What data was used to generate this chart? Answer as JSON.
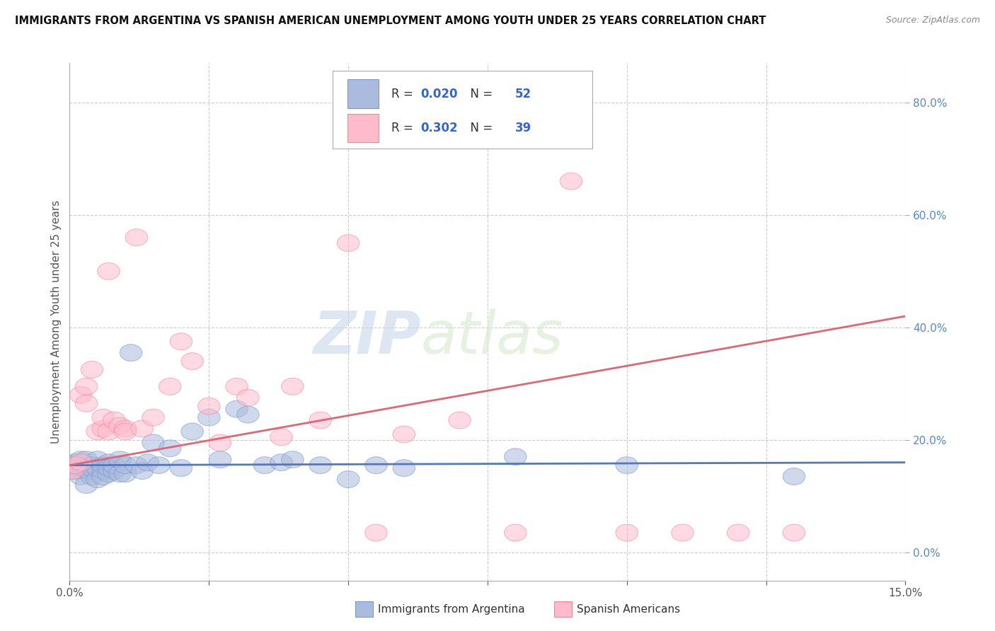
{
  "title": "IMMIGRANTS FROM ARGENTINA VS SPANISH AMERICAN UNEMPLOYMENT AMONG YOUTH UNDER 25 YEARS CORRELATION CHART",
  "source": "Source: ZipAtlas.com",
  "ylabel": "Unemployment Among Youth under 25 years",
  "xlim": [
    0.0,
    0.15
  ],
  "ylim": [
    -0.05,
    0.87
  ],
  "right_yticks": [
    0.0,
    0.2,
    0.4,
    0.6,
    0.8
  ],
  "right_yticklabels": [
    "0.0%",
    "20.0%",
    "40.0%",
    "60.0%",
    "80.0%"
  ],
  "xticks": [
    0.0,
    0.025,
    0.05,
    0.075,
    0.1,
    0.125,
    0.15
  ],
  "xticklabels": [
    "0.0%",
    "",
    "",
    "",
    "",
    "",
    "15.0%"
  ],
  "background_color": "#ffffff",
  "grid_color": "#cccccc",
  "watermark_zip": "ZIP",
  "watermark_atlas": "atlas",
  "legend_blue_label": "Immigrants from Argentina",
  "legend_pink_label": "Spanish Americans",
  "blue_R": "0.020",
  "blue_N": "52",
  "pink_R": "0.302",
  "pink_N": "39",
  "blue_fill": "#aabbdd",
  "blue_edge": "#7799cc",
  "pink_fill": "#ffbbcc",
  "pink_edge": "#ee8899",
  "blue_line_color": "#5577bb",
  "pink_line_color": "#dd6677",
  "blue_scatter_x": [
    0.0005,
    0.001,
    0.001,
    0.0015,
    0.002,
    0.002,
    0.0025,
    0.003,
    0.003,
    0.003,
    0.0035,
    0.004,
    0.004,
    0.004,
    0.005,
    0.005,
    0.005,
    0.006,
    0.006,
    0.006,
    0.007,
    0.007,
    0.007,
    0.008,
    0.008,
    0.009,
    0.009,
    0.01,
    0.01,
    0.011,
    0.012,
    0.013,
    0.014,
    0.015,
    0.016,
    0.018,
    0.02,
    0.022,
    0.025,
    0.027,
    0.03,
    0.032,
    0.035,
    0.038,
    0.04,
    0.045,
    0.05,
    0.055,
    0.06,
    0.08,
    0.1,
    0.13
  ],
  "blue_scatter_y": [
    0.155,
    0.145,
    0.16,
    0.15,
    0.135,
    0.165,
    0.15,
    0.12,
    0.15,
    0.165,
    0.145,
    0.155,
    0.135,
    0.15,
    0.13,
    0.15,
    0.165,
    0.145,
    0.155,
    0.135,
    0.14,
    0.16,
    0.15,
    0.145,
    0.155,
    0.14,
    0.165,
    0.14,
    0.155,
    0.355,
    0.155,
    0.145,
    0.16,
    0.195,
    0.155,
    0.185,
    0.15,
    0.215,
    0.24,
    0.165,
    0.255,
    0.245,
    0.155,
    0.16,
    0.165,
    0.155,
    0.13,
    0.155,
    0.15,
    0.17,
    0.155,
    0.135
  ],
  "pink_scatter_x": [
    0.0005,
    0.001,
    0.002,
    0.002,
    0.003,
    0.003,
    0.004,
    0.005,
    0.006,
    0.006,
    0.007,
    0.007,
    0.008,
    0.009,
    0.01,
    0.01,
    0.012,
    0.013,
    0.015,
    0.018,
    0.02,
    0.022,
    0.025,
    0.027,
    0.03,
    0.032,
    0.038,
    0.04,
    0.045,
    0.05,
    0.055,
    0.06,
    0.07,
    0.08,
    0.09,
    0.1,
    0.11,
    0.12,
    0.13
  ],
  "pink_scatter_y": [
    0.145,
    0.155,
    0.16,
    0.28,
    0.295,
    0.265,
    0.325,
    0.215,
    0.22,
    0.24,
    0.215,
    0.5,
    0.235,
    0.225,
    0.22,
    0.215,
    0.56,
    0.22,
    0.24,
    0.295,
    0.375,
    0.34,
    0.26,
    0.195,
    0.295,
    0.275,
    0.205,
    0.295,
    0.235,
    0.55,
    0.035,
    0.21,
    0.235,
    0.035,
    0.66,
    0.035,
    0.035,
    0.035,
    0.035
  ],
  "blue_trend_x": [
    0.0,
    0.15
  ],
  "blue_trend_y": [
    0.155,
    0.16
  ],
  "pink_trend_x": [
    0.0,
    0.15
  ],
  "pink_trend_y": [
    0.155,
    0.42
  ]
}
